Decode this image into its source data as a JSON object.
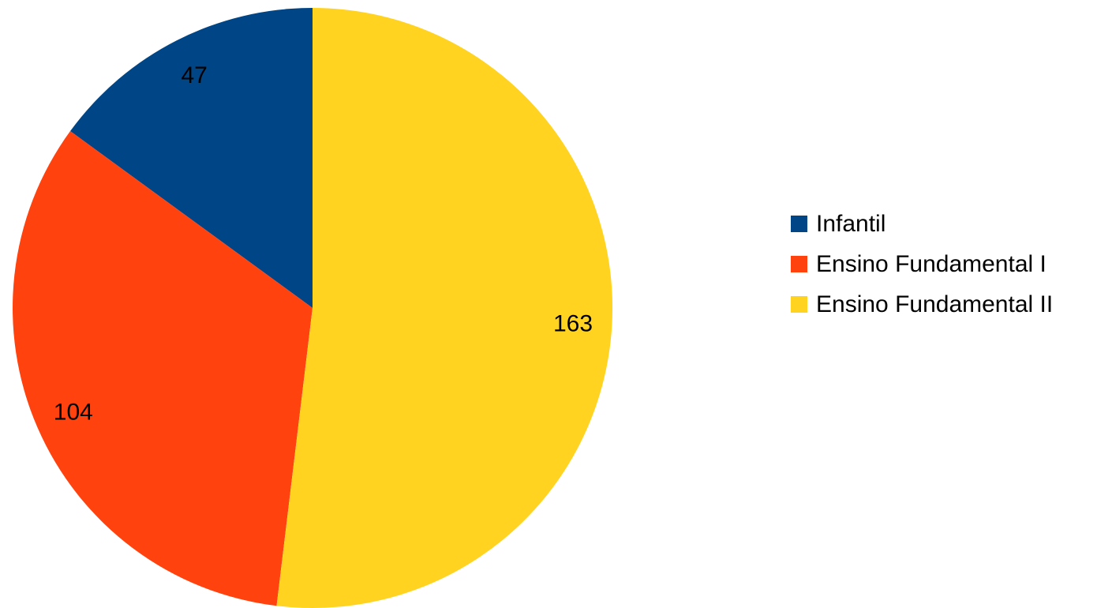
{
  "chart_data": {
    "type": "pie",
    "categories": [
      "Infantil",
      "Ensino Fundamental I",
      "Ensino Fundamental II"
    ],
    "values": [
      47,
      104,
      163
    ],
    "colors": [
      "#004586",
      "#ff420e",
      "#ffd320"
    ],
    "start": "top (12 o'clock)",
    "direction": "counter-clockwise",
    "data_labels": true,
    "legend": {
      "position": "right",
      "entries": [
        "Infantil",
        "Ensino Fundamental I",
        "Ensino Fundamental II"
      ]
    },
    "title": ""
  }
}
